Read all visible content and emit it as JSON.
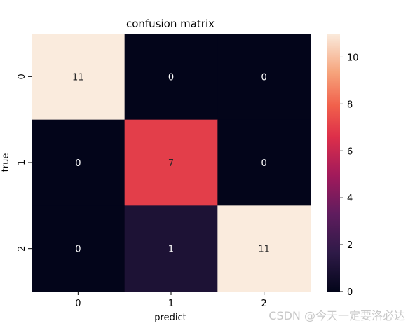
{
  "chart_data": {
    "type": "heatmap",
    "title": "confusion matrix",
    "xlabel": "predict",
    "ylabel": "true",
    "x_categories": [
      "0",
      "1",
      "2"
    ],
    "y_categories": [
      "0",
      "1",
      "2"
    ],
    "values": [
      [
        11,
        0,
        0
      ],
      [
        0,
        7,
        0
      ],
      [
        0,
        1,
        11
      ]
    ],
    "colorbar": {
      "min": 0,
      "max": 11,
      "ticks": [
        0,
        2,
        4,
        6,
        8,
        10
      ],
      "colormap": "rocket"
    }
  },
  "watermark": "CSDN @今天一定要洛必达"
}
